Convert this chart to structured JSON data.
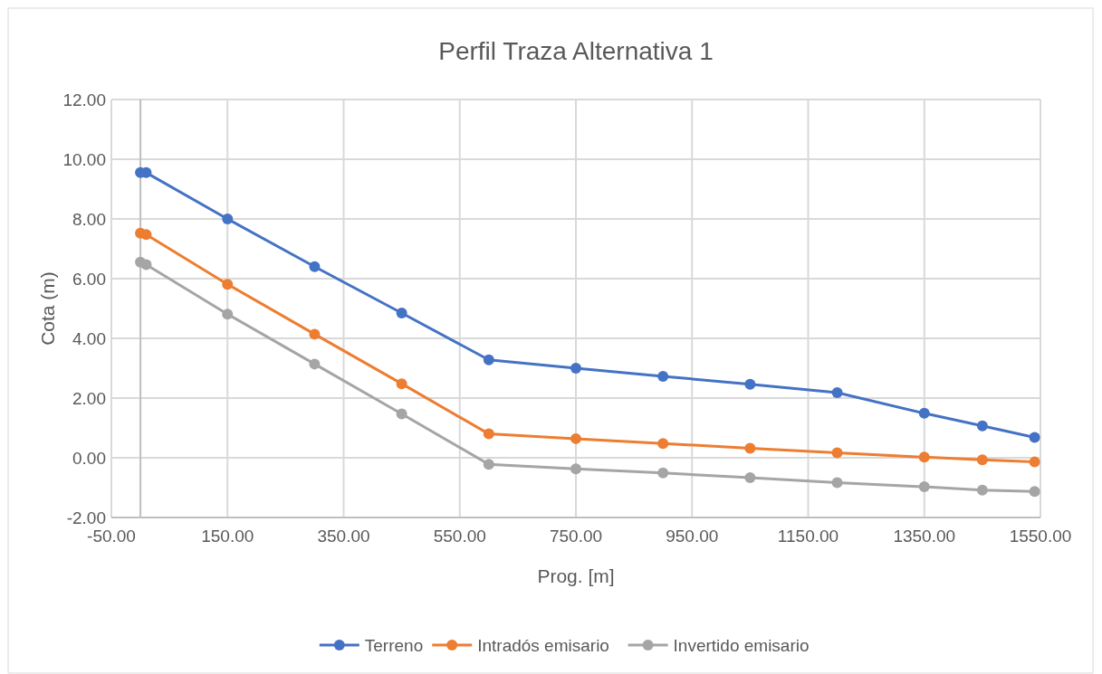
{
  "chart_data": {
    "type": "line",
    "title": "Perfil Traza Alternativa 1",
    "xlabel": "Prog. [m]",
    "ylabel": "Cota (m)",
    "x": [
      0,
      10,
      150,
      300,
      450,
      600,
      750,
      900,
      1050,
      1200,
      1350,
      1450,
      1540
    ],
    "series": [
      {
        "name": "Terreno",
        "color": "#4472c4",
        "values": [
          9.55,
          9.55,
          8.0,
          6.4,
          4.85,
          3.28,
          3.0,
          2.73,
          2.46,
          2.18,
          1.49,
          1.07,
          0.68
        ]
      },
      {
        "name": "Intradós emisario",
        "color": "#ed7d31",
        "values": [
          7.52,
          7.48,
          5.81,
          4.14,
          2.48,
          0.8,
          0.64,
          0.48,
          0.32,
          0.17,
          0.02,
          -0.07,
          -0.14
        ]
      },
      {
        "name": "Invertido emisario",
        "color": "#a5a5a5",
        "values": [
          6.55,
          6.47,
          4.81,
          3.14,
          1.47,
          -0.22,
          -0.37,
          -0.51,
          -0.67,
          -0.83,
          -0.97,
          -1.08,
          -1.13
        ]
      }
    ],
    "xlim": [
      -50,
      1550
    ],
    "xticks": [
      {
        "value": -50,
        "label": "-50.00"
      },
      {
        "value": 150,
        "label": "150.00"
      },
      {
        "value": 350,
        "label": "350.00"
      },
      {
        "value": 550,
        "label": "550.00"
      },
      {
        "value": 750,
        "label": "750.00"
      },
      {
        "value": 950,
        "label": "950.00"
      },
      {
        "value": 1150,
        "label": "1150.00"
      },
      {
        "value": 1350,
        "label": "1350.00"
      },
      {
        "value": 1550,
        "label": "1550.00"
      }
    ],
    "ylim": [
      -2,
      12
    ],
    "yticks": [
      {
        "value": -2,
        "label": "-2.00"
      },
      {
        "value": 0,
        "label": "0.00"
      },
      {
        "value": 2,
        "label": "2.00"
      },
      {
        "value": 4,
        "label": "4.00"
      },
      {
        "value": 6,
        "label": "6.00"
      },
      {
        "value": 8,
        "label": "8.00"
      },
      {
        "value": 10,
        "label": "10.00"
      },
      {
        "value": 12,
        "label": "12.00"
      }
    ],
    "grid": true,
    "legend": "bottom",
    "marker": "circle",
    "line_style": "solid"
  }
}
